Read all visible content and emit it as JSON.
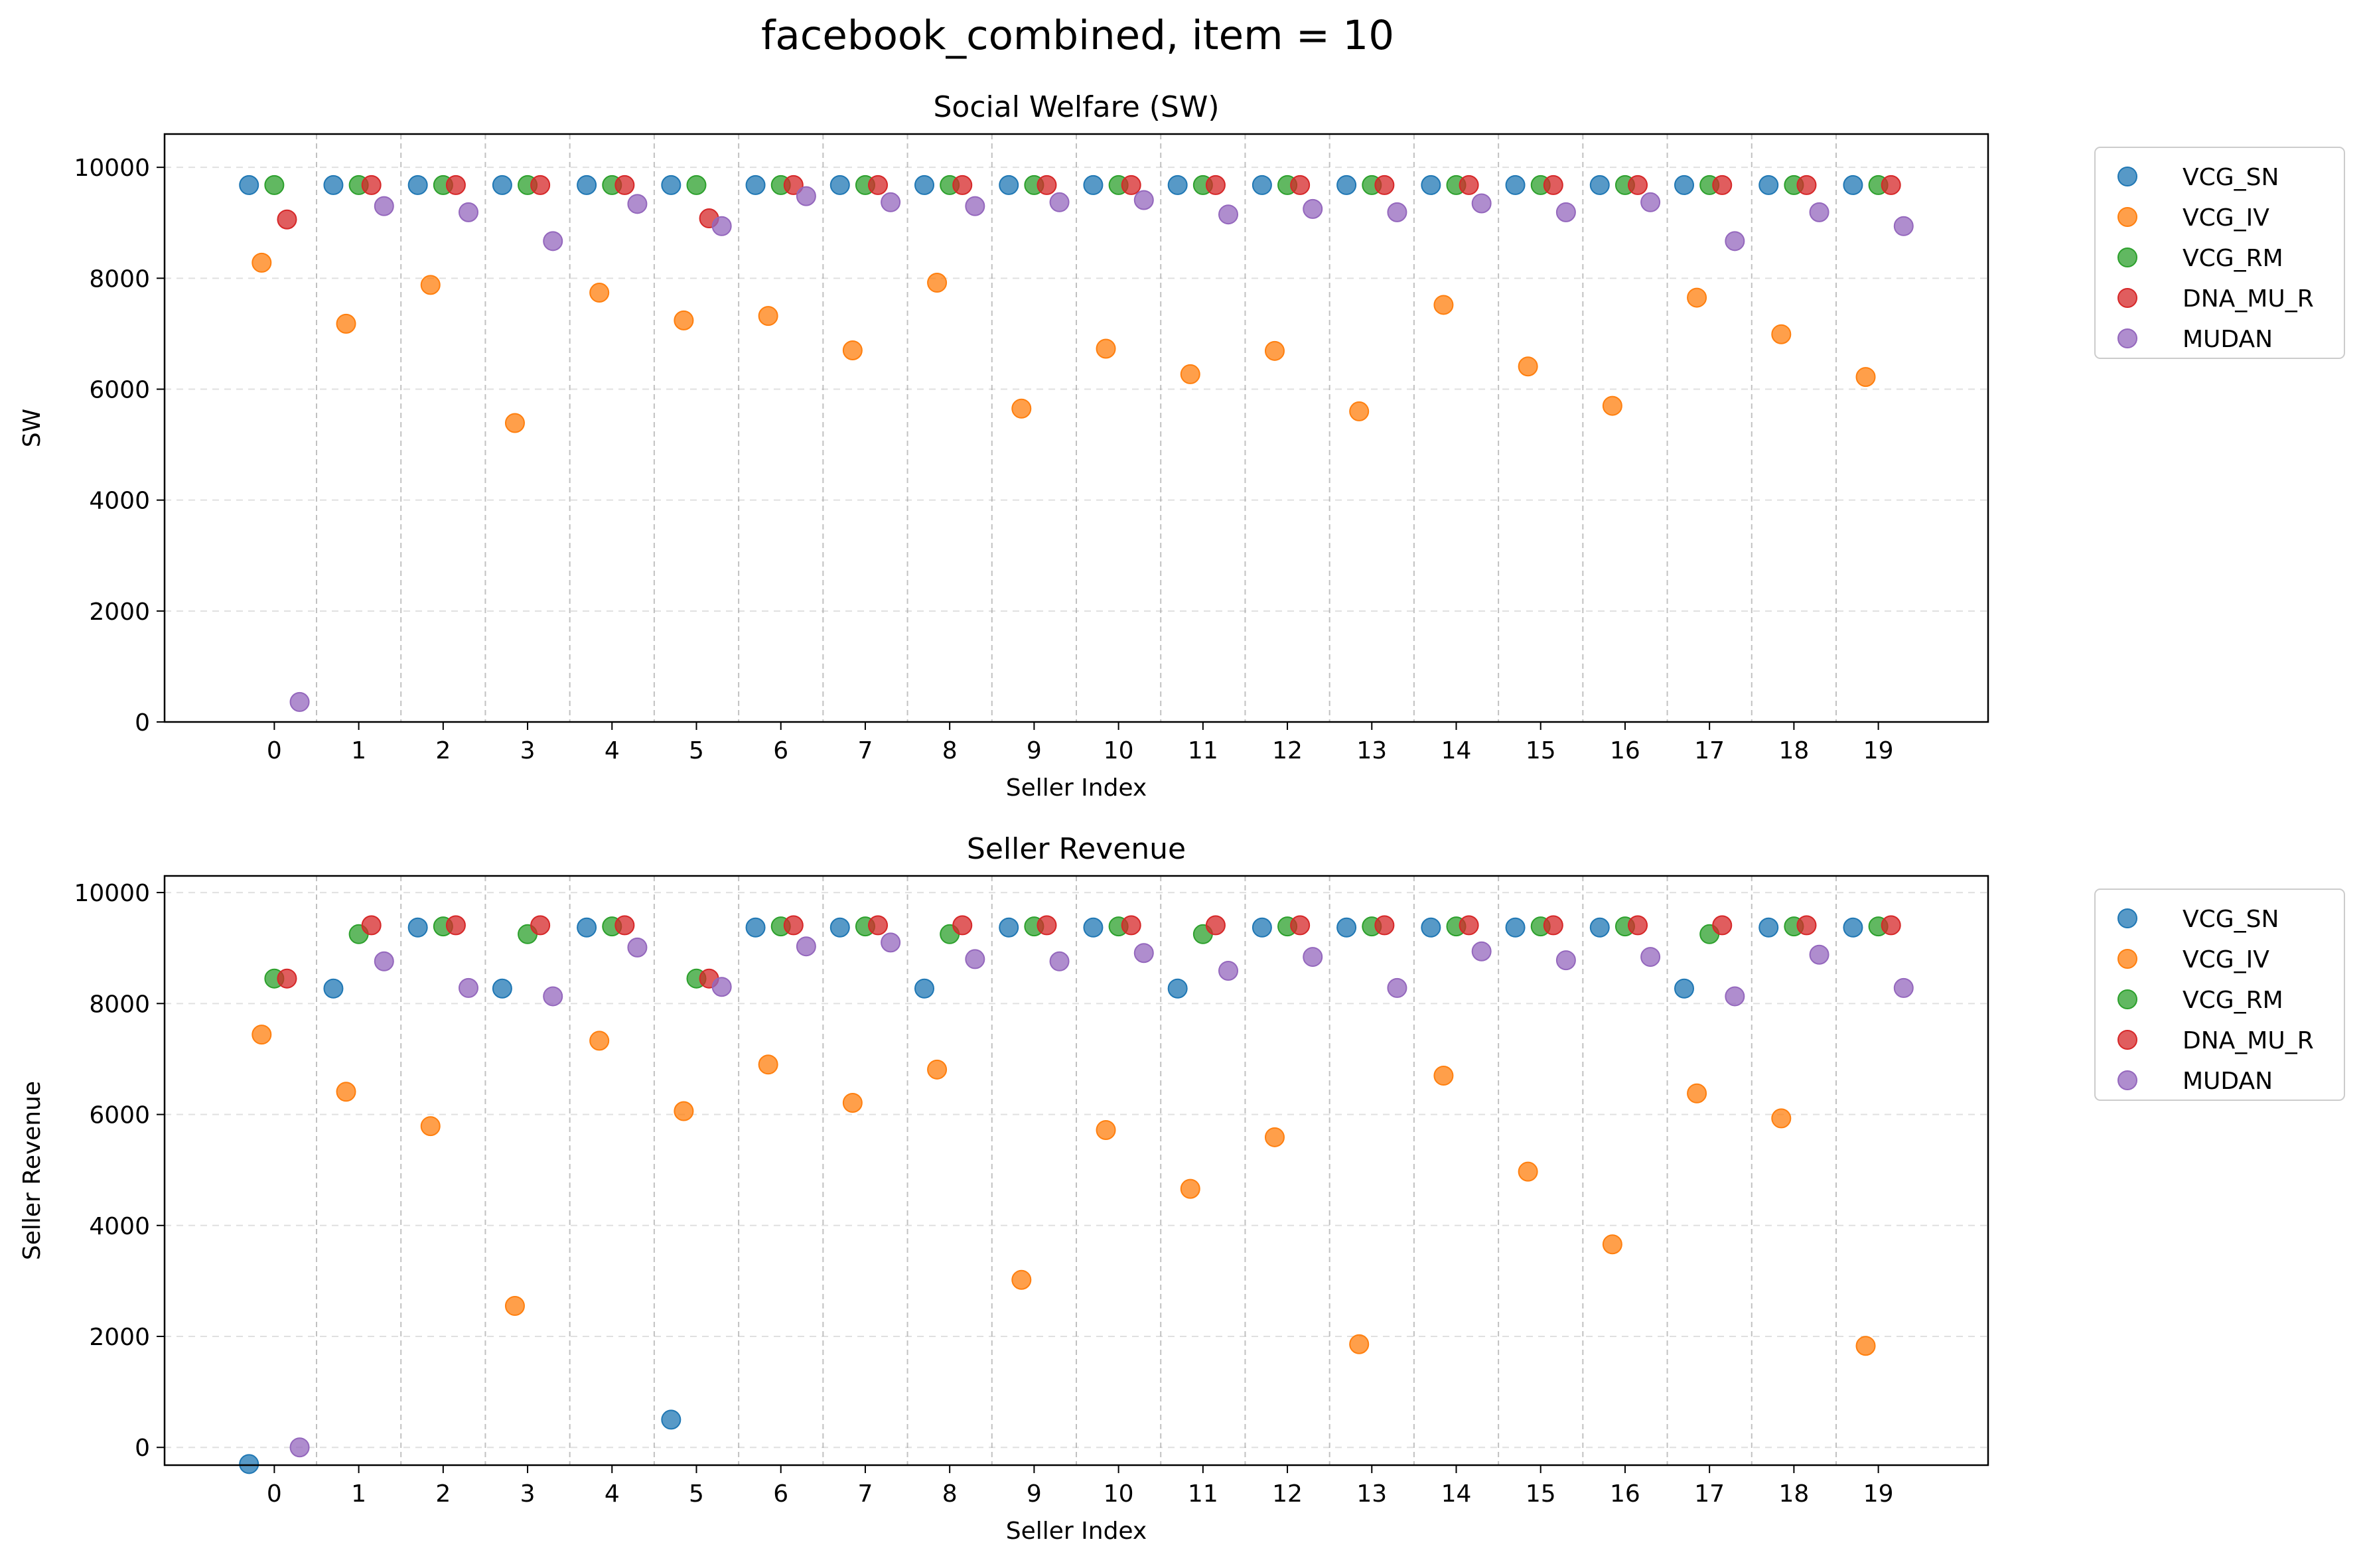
{
  "suptitle": "facebook_combined, item = 10",
  "colors": {
    "VCG_SN": "#1f77b4",
    "VCG_IV": "#ff7f0e",
    "VCG_RM": "#2ca02c",
    "DNA_MU_R": "#d62728",
    "MUDAN": "#9467bd"
  },
  "chart_data": [
    {
      "type": "scatter",
      "title": "Social Welfare (SW)",
      "xlabel": "Seller Index",
      "ylabel": "SW",
      "categories": [
        "0",
        "1",
        "2",
        "3",
        "4",
        "5",
        "6",
        "7",
        "8",
        "9",
        "10",
        "11",
        "12",
        "13",
        "14",
        "15",
        "16",
        "17",
        "18",
        "19"
      ],
      "ylim": [
        0,
        10600
      ],
      "yticks": [
        0,
        2000,
        4000,
        6000,
        8000,
        10000
      ],
      "grid": "dashed horizontal",
      "legend": "outside-right-top",
      "series": [
        {
          "name": "VCG_SN",
          "values": [
            9680,
            9680,
            9680,
            9680,
            9680,
            9680,
            9680,
            9680,
            9680,
            9680,
            9680,
            9680,
            9680,
            9680,
            9680,
            9680,
            9680,
            9680,
            9680,
            9680
          ]
        },
        {
          "name": "VCG_IV",
          "values": [
            8280,
            7180,
            7880,
            5390,
            7740,
            7240,
            7320,
            6700,
            7920,
            5650,
            6730,
            6270,
            6690,
            5600,
            7520,
            6410,
            5700,
            7650,
            6990,
            6220
          ]
        },
        {
          "name": "VCG_RM",
          "values": [
            9680,
            9680,
            9680,
            9680,
            9680,
            9680,
            9680,
            9680,
            9680,
            9680,
            9680,
            9680,
            9680,
            9680,
            9680,
            9680,
            9680,
            9680,
            9680,
            9680
          ]
        },
        {
          "name": "DNA_MU_R",
          "values": [
            9060,
            9680,
            9680,
            9680,
            9680,
            9080,
            9680,
            9680,
            9680,
            9680,
            9680,
            9680,
            9680,
            9680,
            9680,
            9680,
            9680,
            9680,
            9680,
            9680
          ]
        },
        {
          "name": "MUDAN",
          "values": [
            360,
            9300,
            9190,
            8670,
            9340,
            8940,
            9480,
            9370,
            9300,
            9370,
            9410,
            9150,
            9250,
            9190,
            9350,
            9190,
            9370,
            8670,
            9190,
            8940
          ]
        }
      ]
    },
    {
      "type": "scatter",
      "title": "Seller Revenue",
      "xlabel": "Seller Index",
      "ylabel": "Seller Revenue",
      "categories": [
        "0",
        "1",
        "2",
        "3",
        "4",
        "5",
        "6",
        "7",
        "8",
        "9",
        "10",
        "11",
        "12",
        "13",
        "14",
        "15",
        "16",
        "17",
        "18",
        "19"
      ],
      "ylim": [
        -320,
        10300
      ],
      "yticks": [
        0,
        2000,
        4000,
        6000,
        8000,
        10000
      ],
      "grid": "dashed horizontal",
      "legend": "outside-right-top",
      "series": [
        {
          "name": "VCG_SN",
          "values": [
            -300,
            8270,
            9370,
            8270,
            9370,
            500,
            9370,
            9370,
            8270,
            9370,
            9370,
            8270,
            9370,
            9370,
            9370,
            9370,
            9370,
            8270,
            9370,
            9370
          ]
        },
        {
          "name": "VCG_IV",
          "values": [
            7440,
            6410,
            5790,
            2550,
            7330,
            6060,
            6900,
            6210,
            6810,
            3020,
            5720,
            4660,
            5590,
            1860,
            6700,
            4970,
            3660,
            6380,
            5930,
            1830
          ]
        },
        {
          "name": "VCG_RM",
          "values": [
            8450,
            9250,
            9390,
            9250,
            9390,
            8450,
            9390,
            9390,
            9250,
            9390,
            9390,
            9250,
            9390,
            9390,
            9390,
            9390,
            9390,
            9250,
            9390,
            9390
          ]
        },
        {
          "name": "DNA_MU_R",
          "values": [
            8450,
            9410,
            9410,
            9410,
            9410,
            8450,
            9410,
            9410,
            9410,
            9410,
            9410,
            9410,
            9410,
            9410,
            9410,
            9410,
            9410,
            9410,
            9410,
            9410
          ]
        },
        {
          "name": "MUDAN",
          "values": [
            0,
            8760,
            8280,
            8130,
            9010,
            8300,
            9030,
            9100,
            8800,
            8760,
            8910,
            8590,
            8840,
            8280,
            8940,
            8780,
            8840,
            8130,
            8880,
            8280
          ]
        }
      ]
    }
  ]
}
